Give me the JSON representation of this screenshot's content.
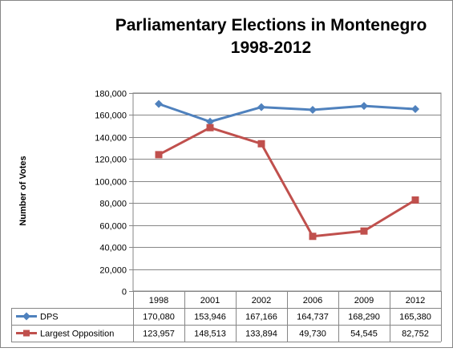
{
  "chart_data": {
    "type": "line",
    "title": "Parliamentary Elections in Montenegro",
    "subtitle": "1998-2012",
    "ylabel": "Number of Votes",
    "xlabel": "",
    "categories": [
      "1998",
      "2001",
      "2002",
      "2006",
      "2009",
      "2012"
    ],
    "ylim": [
      0,
      180000
    ],
    "yticks": [
      0,
      20000,
      40000,
      60000,
      80000,
      100000,
      120000,
      140000,
      160000,
      180000
    ],
    "ytick_labels": [
      "0",
      "20,000",
      "40,000",
      "60,000",
      "80,000",
      "100,000",
      "120,000",
      "140,000",
      "160,000",
      "180,000"
    ],
    "grid": true,
    "legend": "data-table",
    "series": [
      {
        "name": "DPS",
        "color": "#4F81BD",
        "marker": "diamond",
        "values": [
          170080,
          153946,
          167166,
          164737,
          168290,
          165380
        ],
        "labels": [
          "170,080",
          "153,946",
          "167,166",
          "164,737",
          "168,290",
          "165,380"
        ]
      },
      {
        "name": "Largest Opposition",
        "color": "#C0504D",
        "marker": "square",
        "values": [
          123957,
          148513,
          133894,
          49730,
          54545,
          82752
        ],
        "labels": [
          "123,957",
          "148,513",
          "133,894",
          "49,730",
          "54,545",
          "82,752"
        ]
      }
    ]
  }
}
